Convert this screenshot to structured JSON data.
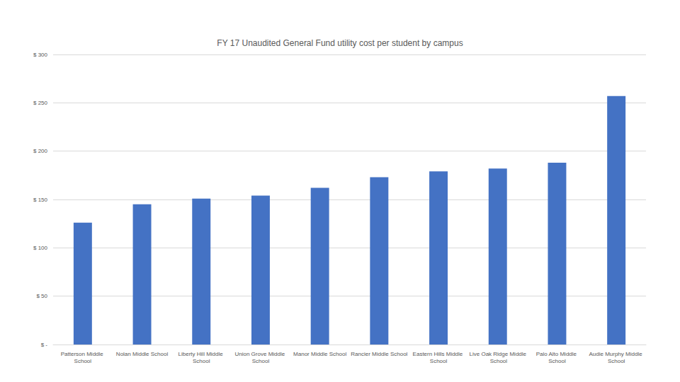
{
  "chart_data": {
    "type": "bar",
    "title": "FY 17 Unaudited General Fund utility cost per student by campus",
    "categories": [
      "Patterson Middle School",
      "Nolan Middle School",
      "Liberty Hill Middle School",
      "Union Grove Middle School",
      "Manor Middle School",
      "Rancier Middle School",
      "Eastern Hills Middle School",
      "Live Oak Ridge Middle School",
      "Palo Alto Middle School",
      "Audie Murphy Middle School"
    ],
    "values": [
      126,
      145,
      151,
      154,
      162,
      173,
      179,
      182,
      188,
      257
    ],
    "color": "#4472c4",
    "ylim": [
      0,
      300
    ],
    "yticks": [
      {
        "value": 0,
        "label": "$ -"
      },
      {
        "value": 50,
        "label": "$ 50"
      },
      {
        "value": 100,
        "label": "$ 100"
      },
      {
        "value": 150,
        "label": "$ 150"
      },
      {
        "value": 200,
        "label": "$ 200"
      },
      {
        "value": 250,
        "label": "$ 250"
      },
      {
        "value": 300,
        "label": "$ 300"
      }
    ],
    "grid": true
  }
}
